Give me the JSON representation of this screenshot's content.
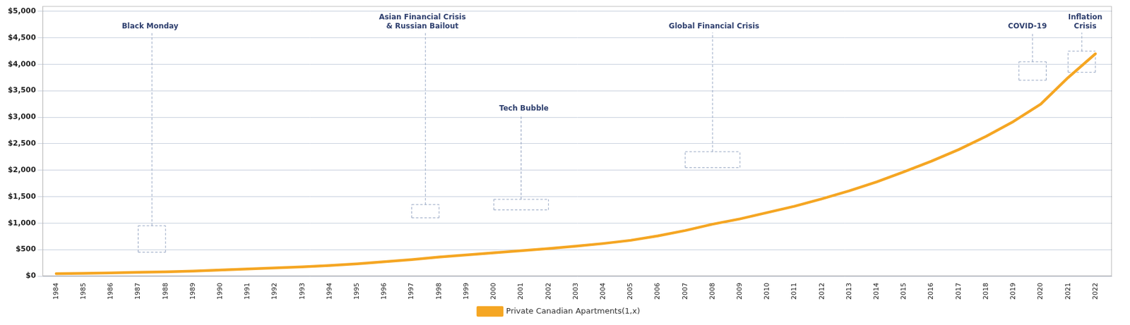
{
  "chart_data": {
    "type": "line",
    "x": [
      1984,
      1985,
      1986,
      1987,
      1988,
      1989,
      1990,
      1991,
      1992,
      1993,
      1994,
      1995,
      1996,
      1997,
      1998,
      1999,
      2000,
      2001,
      2002,
      2003,
      2004,
      2005,
      2006,
      2007,
      2008,
      2009,
      2010,
      2011,
      2012,
      2013,
      2014,
      2015,
      2016,
      2017,
      2018,
      2019,
      2020,
      2021,
      2022
    ],
    "series": [
      {
        "name": "Private Canadian Apartments(1,x)",
        "color": "#F5A623",
        "values": [
          45,
          52,
          60,
          70,
          80,
          95,
          115,
          135,
          155,
          175,
          200,
          230,
          270,
          310,
          360,
          400,
          440,
          480,
          520,
          565,
          615,
          675,
          760,
          860,
          980,
          1080,
          1200,
          1320,
          1460,
          1610,
          1780,
          1970,
          2170,
          2390,
          2640,
          2920,
          3250,
          3750,
          4200
        ]
      }
    ],
    "xlim": [
      1983.5,
      2022.6
    ],
    "xticks": [
      1984,
      1985,
      1986,
      1987,
      1988,
      1989,
      1990,
      1991,
      1992,
      1993,
      1994,
      1995,
      1996,
      1997,
      1998,
      1999,
      2000,
      2001,
      2002,
      2003,
      2004,
      2005,
      2006,
      2007,
      2008,
      2009,
      2010,
      2011,
      2012,
      2013,
      2014,
      2015,
      2016,
      2017,
      2018,
      2019,
      2020,
      2021,
      2022
    ],
    "ylim": [
      0,
      5100
    ],
    "yticks": [
      {
        "value": 0,
        "label": "$0"
      },
      {
        "value": 500,
        "label": "$500"
      },
      {
        "value": 1000,
        "label": "$1,000"
      },
      {
        "value": 1500,
        "label": "$1,500"
      },
      {
        "value": 2000,
        "label": "$2,000"
      },
      {
        "value": 2500,
        "label": "$2,500"
      },
      {
        "value": 3000,
        "label": "$3,000"
      },
      {
        "value": 3500,
        "label": "$3,500"
      },
      {
        "value": 4000,
        "label": "$4,000"
      },
      {
        "value": 4500,
        "label": "$4,500"
      },
      {
        "value": 5000,
        "label": "$5,000"
      }
    ],
    "grid": true,
    "legend": "bottom",
    "annotations": [
      {
        "text": "Black Monday",
        "x_start": 1987.0,
        "x_end": 1988.0,
        "y_bottom": 450,
        "y_top": 950,
        "y_line_top": 4600,
        "x": 1986.4,
        "y": 4650
      },
      {
        "text": "Asian Financial Crisis\n& Russian Bailout",
        "x_start": 1997.0,
        "x_end": 1998.0,
        "y_bottom": 1100,
        "y_top": 1350,
        "y_line_top": 4600,
        "x": 1995.8,
        "y": 4650
      },
      {
        "text": "Tech Bubble",
        "x_start": 2000.0,
        "x_end": 2002.0,
        "y_bottom": 1250,
        "y_top": 1450,
        "y_line_top": 3050,
        "x": 2000.2,
        "y": 3100
      },
      {
        "text": "Global Financial Crisis",
        "x_start": 2007.0,
        "x_end": 2009.0,
        "y_bottom": 2050,
        "y_top": 2350,
        "y_line_top": 4600,
        "x": 2006.4,
        "y": 4650
      },
      {
        "text": "COVID-19",
        "x_start": 2019.2,
        "x_end": 2020.2,
        "y_bottom": 3700,
        "y_top": 4050,
        "y_line_top": 4600,
        "x": 2018.8,
        "y": 4650
      },
      {
        "text": "Inflation\nCrisis",
        "x_start": 2021.0,
        "x_end": 2022.0,
        "y_bottom": 3850,
        "y_top": 4250,
        "y_line_top": 4600,
        "x": 2021.0,
        "y": 4650
      }
    ]
  }
}
